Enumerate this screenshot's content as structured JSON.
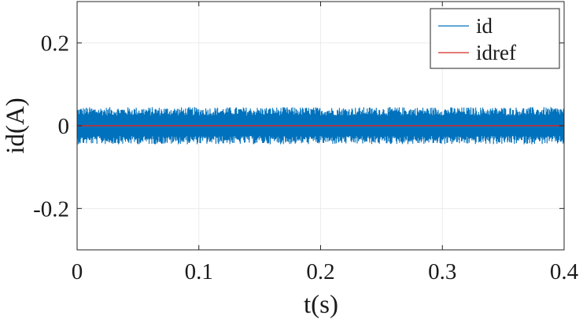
{
  "chart_data": {
    "type": "line",
    "xlabel": "t(s)",
    "ylabel": "id(A)",
    "xlim": [
      0,
      0.4
    ],
    "ylim": [
      -0.3,
      0.3
    ],
    "x_ticks": [
      0,
      0.1,
      0.2,
      0.3,
      0.4
    ],
    "x_tick_labels": [
      "0",
      "0.1",
      "0.2",
      "0.3",
      "0.4"
    ],
    "y_ticks": [
      -0.2,
      0,
      0.2
    ],
    "y_tick_labels": [
      "-0.2",
      "0",
      "0.2"
    ],
    "grid": true,
    "legend_position": "top-right",
    "series": [
      {
        "name": "id",
        "color": "#0072bd",
        "description_kind": "noise band",
        "x_range": [
          0,
          0.4
        ],
        "center": 0,
        "amplitude": 0.045
      },
      {
        "name": "idref",
        "color": "#d62728",
        "x": [
          0,
          0.4
        ],
        "y": [
          0,
          0
        ]
      }
    ]
  },
  "legend": {
    "items": [
      {
        "label": "id",
        "color": "#0072bd"
      },
      {
        "label": "idref",
        "color": "#d62728"
      }
    ]
  },
  "colors": {
    "axis": "#262626",
    "grid": "#ebebeb"
  }
}
